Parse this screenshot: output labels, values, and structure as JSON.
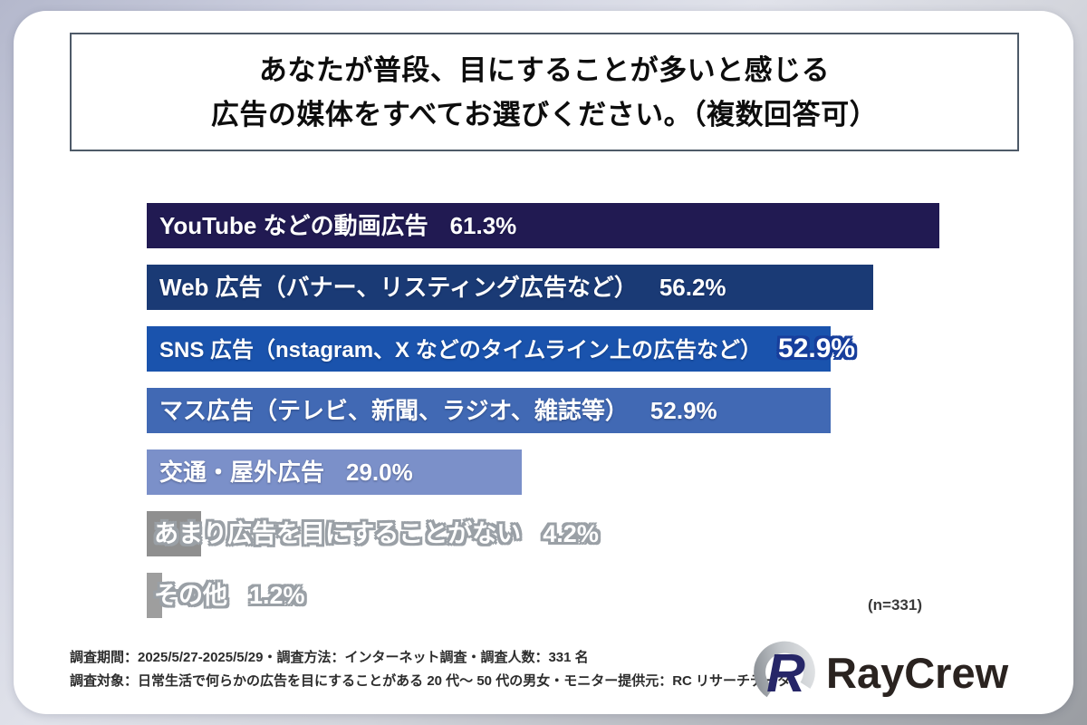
{
  "title": {
    "line1": "あなたが普段、目にすることが多いと感じる",
    "line2": "広告の媒体をすべてお選びください。（複数回答可）"
  },
  "chart_data": {
    "type": "bar",
    "orientation": "horizontal",
    "unit": "%",
    "xlim": [
      0,
      70
    ],
    "grid": false,
    "legend": "none",
    "categories": [
      "YouTube などの動画広告",
      "Web 広告（バナー、リスティング広告など）",
      "SNS 広告（nstagram、X などのタイムライン上の広告など）",
      "マス広告（テレビ、新聞、ラジオ、雑誌等）",
      "交通・屋外広告",
      "あまり広告を目にすることがない",
      "その他"
    ],
    "values": [
      61.3,
      56.2,
      52.9,
      52.9,
      29.0,
      4.2,
      1.2
    ],
    "bars": [
      {
        "label": "YouTube などの動画広告",
        "value": 61.3,
        "display_value": "61.3%",
        "color": "#211a52",
        "text_style": "inside"
      },
      {
        "label": "Web 広告（バナー、リスティング広告など）",
        "value": 56.2,
        "display_value": "56.2%",
        "color": "#1a3a75",
        "text_style": "inside"
      },
      {
        "label": "SNS 広告（nstagram、X などのタイムライン上の広告など）",
        "value": 52.9,
        "display_value": "52.9%",
        "color": "#1a53ad",
        "text_style": "value-outside"
      },
      {
        "label": "マス広告（テレビ、新聞、ラジオ、雑誌等）",
        "value": 52.9,
        "display_value": "52.9%",
        "color": "#4169b4",
        "text_style": "inside"
      },
      {
        "label": "交通・屋外広告",
        "value": 29.0,
        "display_value": "29.0%",
        "color": "#7b90c9",
        "text_style": "inside"
      },
      {
        "label": "あまり広告を目にすることがない",
        "value": 4.2,
        "display_value": "4.2%",
        "color": "#8f8f8f",
        "text_style": "outline-gray"
      },
      {
        "label": "その他",
        "value": 1.2,
        "display_value": "1.2%",
        "color": "#9e9e9e",
        "text_style": "outline-gray"
      }
    ],
    "sample_note": "(n=331)"
  },
  "footer": {
    "line1": "調査期間：2025/5/27-2025/5/29・調査方法：インターネット調査・調査人数：331 名",
    "line2": "調査対象：日常生活で何らかの広告を目にすることがある 20 代〜 50 代の男女・モニター提供元：RC リサーチデータ"
  },
  "logo": {
    "text": "RayCrew",
    "mark_color": "#262668",
    "ring_color_light": "#d9dbde",
    "ring_color_dark": "#8f9499"
  }
}
